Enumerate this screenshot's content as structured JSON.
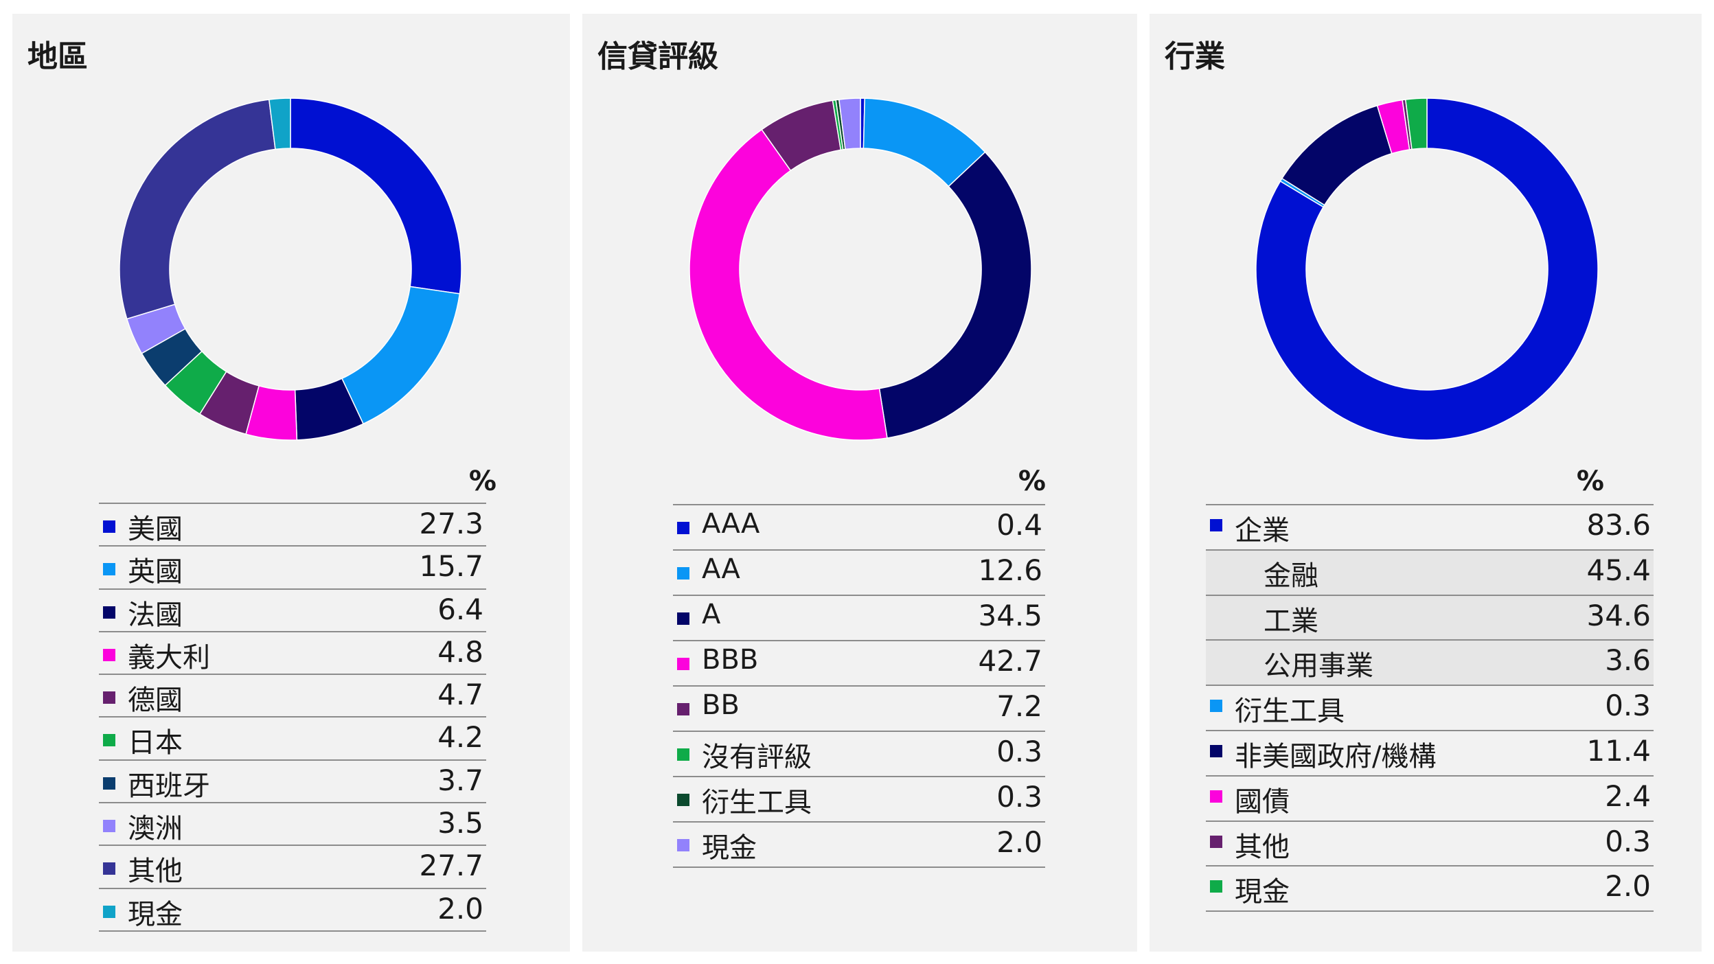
{
  "chart_data": [
    {
      "type": "pie",
      "title": "地區",
      "unit_header": "%",
      "colors": [
        "#0010d2",
        "#0a96f5",
        "#030568",
        "#fc03dc",
        "#66206e",
        "#0fab49",
        "#0b3d6e",
        "#9282fc",
        "#353496",
        "#10a3c8"
      ],
      "categories": [
        "美國",
        "英國",
        "法國",
        "義大利",
        "德國",
        "日本",
        "西班牙",
        "澳洲",
        "其他",
        "現金"
      ],
      "values": [
        27.3,
        15.7,
        6.4,
        4.8,
        4.7,
        4.2,
        3.7,
        3.5,
        27.7,
        2.0
      ],
      "labels": [
        "27.3",
        "15.7",
        "6.4",
        "4.8",
        "4.7",
        "4.2",
        "3.7",
        "3.5",
        "27.7",
        "2.0"
      ]
    },
    {
      "type": "pie",
      "title": "信貸評級",
      "unit_header": "%",
      "colors": [
        "#0010d2",
        "#0a96f5",
        "#030568",
        "#fc03dc",
        "#66206e",
        "#0fab49",
        "#0c4a2e",
        "#9282fc"
      ],
      "categories": [
        "AAA",
        "AA",
        "A",
        "BBB",
        "BB",
        "沒有評級",
        "衍生工具",
        "現金"
      ],
      "values": [
        0.4,
        12.6,
        34.5,
        42.7,
        7.2,
        0.3,
        0.3,
        2.0
      ],
      "labels": [
        "0.4",
        "12.6",
        "34.5",
        "42.7",
        "7.2",
        "0.3",
        "0.3",
        "2.0"
      ]
    },
    {
      "type": "pie",
      "title": "行業",
      "unit_header": "%",
      "colors": [
        "#0010d2",
        "#0a96f5",
        "#030568",
        "#fc03dc",
        "#66206e",
        "#0fab49"
      ],
      "categories": [
        "企業",
        "衍生工具",
        "非美國政府/機構",
        "國債",
        "其他",
        "現金"
      ],
      "values": [
        83.6,
        0.3,
        11.4,
        2.4,
        0.3,
        2.0
      ],
      "sub_categories": [
        "金融",
        "工業",
        "公用事業"
      ],
      "sub_values": [
        45.4,
        34.6,
        3.6
      ],
      "rows": [
        {
          "label": "企業",
          "value": "83.6",
          "color": "#0010d2",
          "sub": false
        },
        {
          "label": "金融",
          "value": "45.4",
          "color": "",
          "sub": true
        },
        {
          "label": "工業",
          "value": "34.6",
          "color": "",
          "sub": true
        },
        {
          "label": "公用事業",
          "value": "3.6",
          "color": "",
          "sub": true
        },
        {
          "label": "衍生工具",
          "value": "0.3",
          "color": "#0a96f5",
          "sub": false
        },
        {
          "label": "非美國政府/機構",
          "value": "11.4",
          "color": "#030568",
          "sub": false
        },
        {
          "label": "國債",
          "value": "2.4",
          "color": "#fc03dc",
          "sub": false
        },
        {
          "label": "其他",
          "value": "0.3",
          "color": "#66206e",
          "sub": false
        },
        {
          "label": "現金",
          "value": "2.0",
          "color": "#0fab49",
          "sub": false
        }
      ]
    }
  ]
}
